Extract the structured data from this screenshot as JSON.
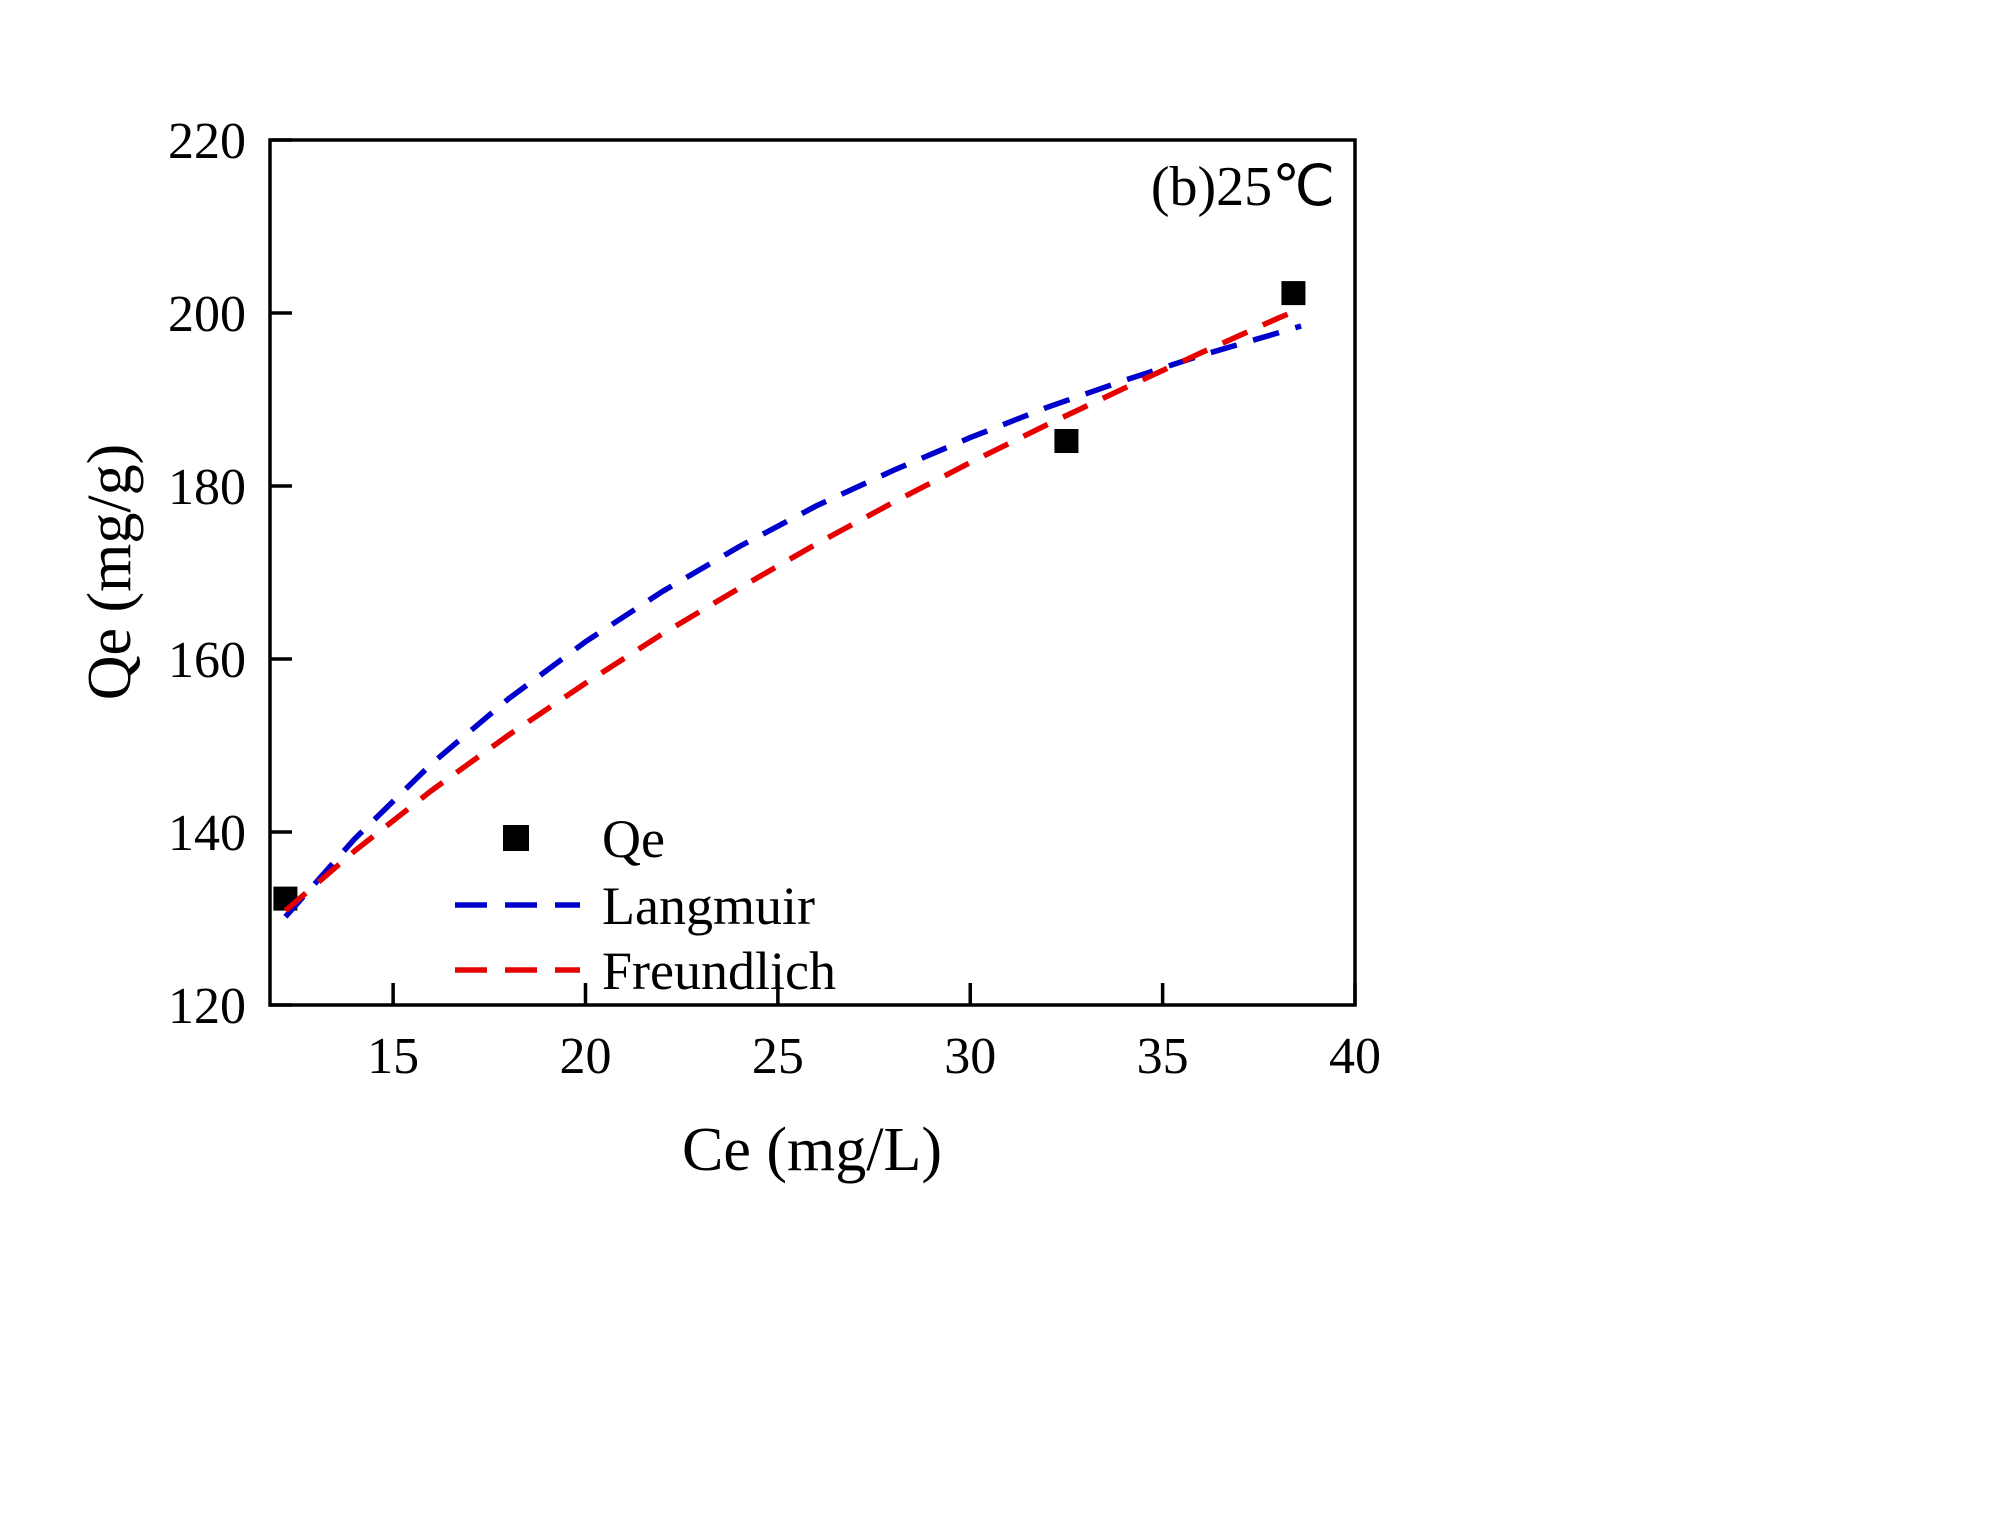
{
  "figure": {
    "background": "#ffffff",
    "frame_color": "#000000"
  },
  "chart_data": {
    "type": "scatter",
    "title": "",
    "annotation": "(b)25℃",
    "xlabel": "Ce (mg/L)",
    "ylabel": "Qe (mg/g)",
    "xlim": [
      11.8,
      40
    ],
    "ylim": [
      120,
      220
    ],
    "xticks": [
      15,
      20,
      25,
      30,
      35,
      40
    ],
    "yticks": [
      120,
      140,
      160,
      180,
      200,
      220
    ],
    "grid": false,
    "legend": {
      "position": "inside-bottom-left",
      "entries": [
        "Qe",
        "Langmuir",
        "Freundlich"
      ]
    },
    "series": [
      {
        "name": "Qe",
        "type": "scatter",
        "marker": "square",
        "color": "#000000",
        "points": [
          [
            12.2,
            132.3
          ],
          [
            32.5,
            185.2
          ],
          [
            38.4,
            202.3
          ]
        ]
      },
      {
        "name": "Langmuir",
        "type": "line",
        "style": "dashed",
        "color": "#0000cd",
        "points": [
          [
            12.2,
            130.2
          ],
          [
            14,
            139.2
          ],
          [
            16,
            147.9
          ],
          [
            18,
            155.4
          ],
          [
            20,
            162.0
          ],
          [
            22,
            167.8
          ],
          [
            24,
            173.0
          ],
          [
            26,
            177.7
          ],
          [
            28,
            181.8
          ],
          [
            30,
            185.6
          ],
          [
            32,
            189.1
          ],
          [
            34,
            192.2
          ],
          [
            36,
            195.1
          ],
          [
            38,
            197.7
          ],
          [
            38.6,
            198.5
          ]
        ]
      },
      {
        "name": "Freundlich",
        "type": "line",
        "style": "dashed",
        "color": "#e60000",
        "points": [
          [
            12.2,
            130.9
          ],
          [
            14,
            137.8
          ],
          [
            16,
            144.8
          ],
          [
            18,
            151.2
          ],
          [
            20,
            157.2
          ],
          [
            22,
            162.9
          ],
          [
            24,
            168.2
          ],
          [
            26,
            173.3
          ],
          [
            28,
            178.1
          ],
          [
            30,
            182.7
          ],
          [
            32,
            187.1
          ],
          [
            34,
            191.3
          ],
          [
            36,
            195.4
          ],
          [
            38,
            199.4
          ],
          [
            38.6,
            200.5
          ]
        ]
      }
    ]
  }
}
